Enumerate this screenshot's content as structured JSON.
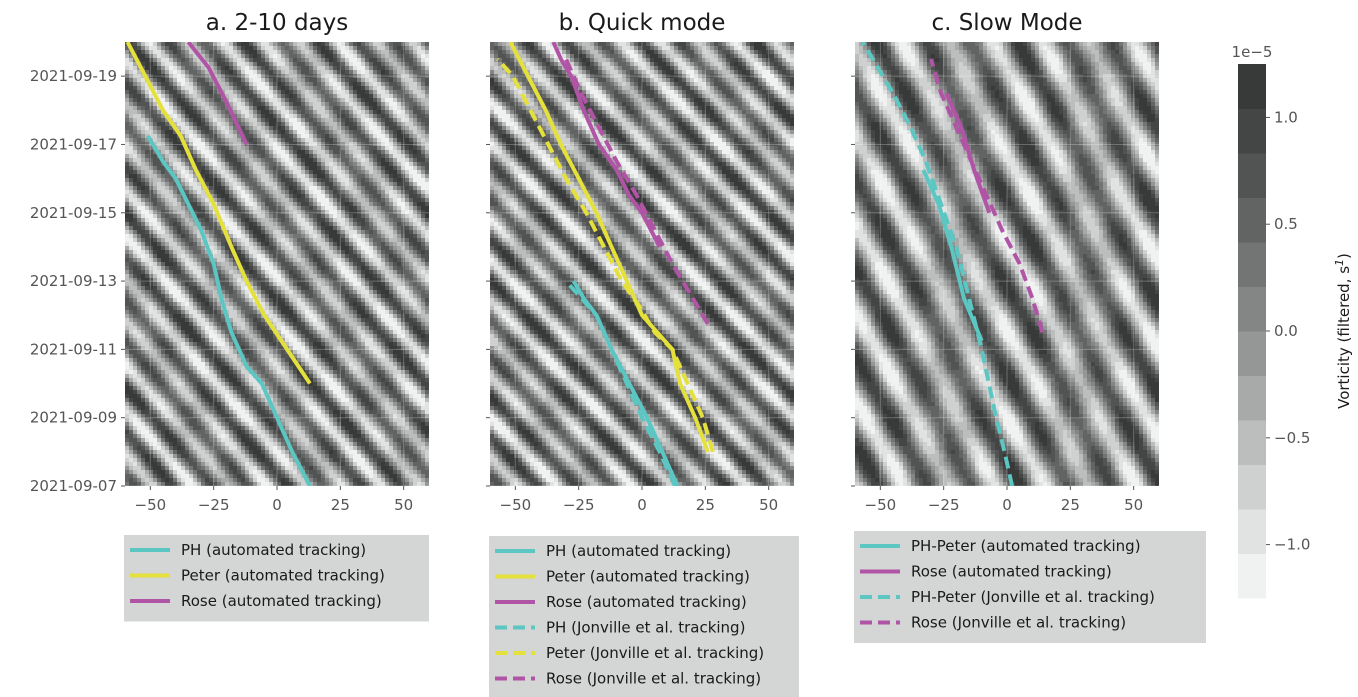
{
  "chart_data": [
    {
      "type": "hovmoller-contour",
      "title": "a. 2-10 days",
      "xlim": [
        -60,
        60
      ],
      "ylim": [
        "2021-09-07",
        "2021-09-20"
      ],
      "x_ticks": [
        -50,
        -25,
        0,
        25,
        50
      ],
      "y_ticks": [
        "2021-09-07",
        "2021-09-09",
        "2021-09-11",
        "2021-09-13",
        "2021-09-15",
        "2021-09-17",
        "2021-09-19"
      ],
      "grid": true,
      "legend_position": "below",
      "series": [
        {
          "name": "PH (automated tracking)",
          "color": "#5cc6c2",
          "style": "solid",
          "x": [
            13,
            6,
            0,
            -6,
            -12,
            -18,
            -22,
            -25,
            -30,
            -35,
            -40,
            -45,
            -51
          ],
          "y": [
            "2021-09-07T00",
            "2021-09-08T00",
            "2021-09-09T00",
            "2021-09-10T00",
            "2021-09-10T12",
            "2021-09-11T12",
            "2021-09-12T12",
            "2021-09-13T12",
            "2021-09-14T12",
            "2021-09-15T06",
            "2021-09-16T00",
            "2021-09-16T12",
            "2021-09-17T06"
          ]
        },
        {
          "name": "Peter (automated tracking)",
          "color": "#e4e03c",
          "style": "solid",
          "x": [
            13,
            4,
            -5,
            -12,
            -18,
            -25,
            -32,
            -38,
            -45,
            -52,
            -59
          ],
          "y": [
            "2021-09-10T00",
            "2021-09-11T00",
            "2021-09-12T00",
            "2021-09-13T00",
            "2021-09-14T00",
            "2021-09-15T06",
            "2021-09-16T06",
            "2021-09-17T06",
            "2021-09-18T00",
            "2021-09-19T00",
            "2021-09-20T00"
          ]
        },
        {
          "name": "Rose (automated tracking)",
          "color": "#b054a6",
          "style": "solid",
          "x": [
            -12,
            -20,
            -27,
            -35
          ],
          "y": [
            "2021-09-17T00",
            "2021-09-18T06",
            "2021-09-19T06",
            "2021-09-20T00"
          ]
        }
      ]
    },
    {
      "type": "hovmoller-contour",
      "title": "b. Quick mode",
      "xlim": [
        -60,
        60
      ],
      "ylim": [
        "2021-09-07",
        "2021-09-20"
      ],
      "x_ticks": [
        -50,
        -25,
        0,
        25,
        50
      ],
      "y_ticks": [],
      "grid": true,
      "legend_position": "below",
      "series": [
        {
          "name": "PH (automated tracking)",
          "color": "#5cc6c2",
          "style": "solid",
          "x": [
            14,
            8,
            2,
            -5,
            -12,
            -18,
            -23,
            -27
          ],
          "y": [
            "2021-09-07T00",
            "2021-09-08T00",
            "2021-09-09T00",
            "2021-09-10T00",
            "2021-09-11T00",
            "2021-09-12T00",
            "2021-09-12T12",
            "2021-09-13T00"
          ]
        },
        {
          "name": "Peter (automated tracking)",
          "color": "#e4e03c",
          "style": "solid",
          "x": [
            26,
            21,
            15,
            12,
            6,
            0,
            -6,
            -12,
            -18,
            -25,
            -32,
            -38,
            -45,
            -52
          ],
          "y": [
            "2021-09-08T00",
            "2021-09-09T00",
            "2021-09-10T00",
            "2021-09-11T00",
            "2021-09-11T12",
            "2021-09-12T00",
            "2021-09-13T00",
            "2021-09-14T00",
            "2021-09-15T00",
            "2021-09-16T00",
            "2021-09-17T00",
            "2021-09-18T00",
            "2021-09-19T00",
            "2021-09-20T00"
          ]
        },
        {
          "name": "Rose (automated tracking)",
          "color": "#b054a6",
          "style": "solid",
          "x": [
            7,
            0,
            -5,
            -10,
            -17,
            -23,
            -28,
            -32,
            -35
          ],
          "y": [
            "2021-09-14T00",
            "2021-09-15T00",
            "2021-09-15T12",
            "2021-09-16T06",
            "2021-09-17T00",
            "2021-09-18T00",
            "2021-09-19T00",
            "2021-09-19T12",
            "2021-09-20T00"
          ]
        },
        {
          "name": "PH (Jonville et al. tracking)",
          "color": "#5cc6c2",
          "style": "dashed",
          "x": [
            13,
            7,
            0,
            -6,
            -12,
            -18,
            -24,
            -30
          ],
          "y": [
            "2021-09-07T00",
            "2021-09-08T00",
            "2021-09-09T00",
            "2021-09-10T00",
            "2021-09-11T00",
            "2021-09-12T00",
            "2021-09-12T12",
            "2021-09-13T00"
          ]
        },
        {
          "name": "Peter (Jonville et al. tracking)",
          "color": "#e4e03c",
          "style": "dashed",
          "x": [
            28,
            24,
            18,
            12,
            5,
            -1,
            -8,
            -15,
            -22,
            -30,
            -37,
            -44,
            -51,
            -57
          ],
          "y": [
            "2021-09-08T00",
            "2021-09-09T00",
            "2021-09-10T00",
            "2021-09-11T00",
            "2021-09-11T12",
            "2021-09-12T06",
            "2021-09-13T00",
            "2021-09-14T00",
            "2021-09-15T00",
            "2021-09-16T00",
            "2021-09-17T00",
            "2021-09-18T00",
            "2021-09-19T00",
            "2021-09-19T12"
          ]
        },
        {
          "name": "Rose (Jonville et al. tracking)",
          "color": "#b054a6",
          "style": "dashed",
          "x": [
            26,
            20,
            12,
            5,
            -2,
            -10,
            -17,
            -24,
            -30
          ],
          "y": [
            "2021-09-11T18",
            "2021-09-12T12",
            "2021-09-13T12",
            "2021-09-14T12",
            "2021-09-15T12",
            "2021-09-16T12",
            "2021-09-17T12",
            "2021-09-18T12",
            "2021-09-19T12"
          ]
        }
      ]
    },
    {
      "type": "hovmoller-contour",
      "title": "c. Slow Mode",
      "xlim": [
        -60,
        60
      ],
      "ylim": [
        "2021-09-07",
        "2021-09-20"
      ],
      "x_ticks": [
        -50,
        -25,
        0,
        25,
        50
      ],
      "y_ticks": [],
      "grid": true,
      "legend_position": "below",
      "series": [
        {
          "name": "PH-Peter (automated tracking)",
          "color": "#5cc6c2",
          "style": "solid",
          "x": [
            -10,
            -17,
            -22,
            -27,
            -33
          ],
          "y": [
            "2021-09-11T06",
            "2021-09-12T12",
            "2021-09-14T00",
            "2021-09-15T06",
            "2021-09-16T06"
          ]
        },
        {
          "name": "Rose (automated tracking)",
          "color": "#b054a6",
          "style": "solid",
          "x": [
            -7,
            -13,
            -18,
            -24
          ],
          "y": [
            "2021-09-15T00",
            "2021-09-16T06",
            "2021-09-17T12",
            "2021-09-18T12"
          ]
        },
        {
          "name": "PH-Peter (Jonville et al. tracking)",
          "color": "#5cc6c2",
          "style": "dashed",
          "x": [
            2,
            -1,
            -5,
            -10,
            -15,
            -20,
            -26,
            -32,
            -38,
            -45,
            -51,
            -57
          ],
          "y": [
            "2021-09-07T00",
            "2021-09-08T00",
            "2021-09-09T06",
            "2021-09-11T00",
            "2021-09-12T12",
            "2021-09-14T00",
            "2021-09-15T06",
            "2021-09-16T12",
            "2021-09-17T12",
            "2021-09-18T12",
            "2021-09-19T06",
            "2021-09-20T00"
          ]
        },
        {
          "name": "Rose (Jonville et al. tracking)",
          "color": "#b054a6",
          "style": "dashed",
          "x": [
            14,
            10,
            5,
            -2,
            -8,
            -14,
            -20,
            -26,
            -30
          ],
          "y": [
            "2021-09-11T12",
            "2021-09-12T12",
            "2021-09-13T12",
            "2021-09-14T12",
            "2021-09-15T12",
            "2021-09-16T12",
            "2021-09-17T12",
            "2021-09-18T12",
            "2021-09-19T12"
          ]
        }
      ]
    }
  ],
  "colorbar": {
    "label": "Vorticity (filtered, s¹)",
    "label_main": "Vorticity (filtered, s",
    "label_sup": "1",
    "label_end": ")",
    "exponent": "1e−5",
    "vmin": -1.25,
    "vmax": 1.25,
    "levels": 12,
    "ticks": [
      1.0,
      0.5,
      0.0,
      -0.5,
      -1.0
    ],
    "tick_labels": [
      "1.0",
      "0.5",
      "0.0",
      "−0.5",
      "−1.0"
    ],
    "colors": [
      "#f0f1f1",
      "#e1e2e2",
      "#cfd0d0",
      "#bcbdbd",
      "#a8a9a9",
      "#959696",
      "#848585",
      "#737474",
      "#626363",
      "#525353",
      "#444545",
      "#383939"
    ]
  },
  "y_tick_labels": [
    "2021-09-07",
    "2021-09-09",
    "2021-09-11",
    "2021-09-13",
    "2021-09-15",
    "2021-09-17",
    "2021-09-19"
  ],
  "x_tick_labels": [
    "−50",
    "−25",
    "0",
    "25",
    "50"
  ],
  "legend_bg": "#d4d5d5",
  "plot_bg": "#b9baba"
}
